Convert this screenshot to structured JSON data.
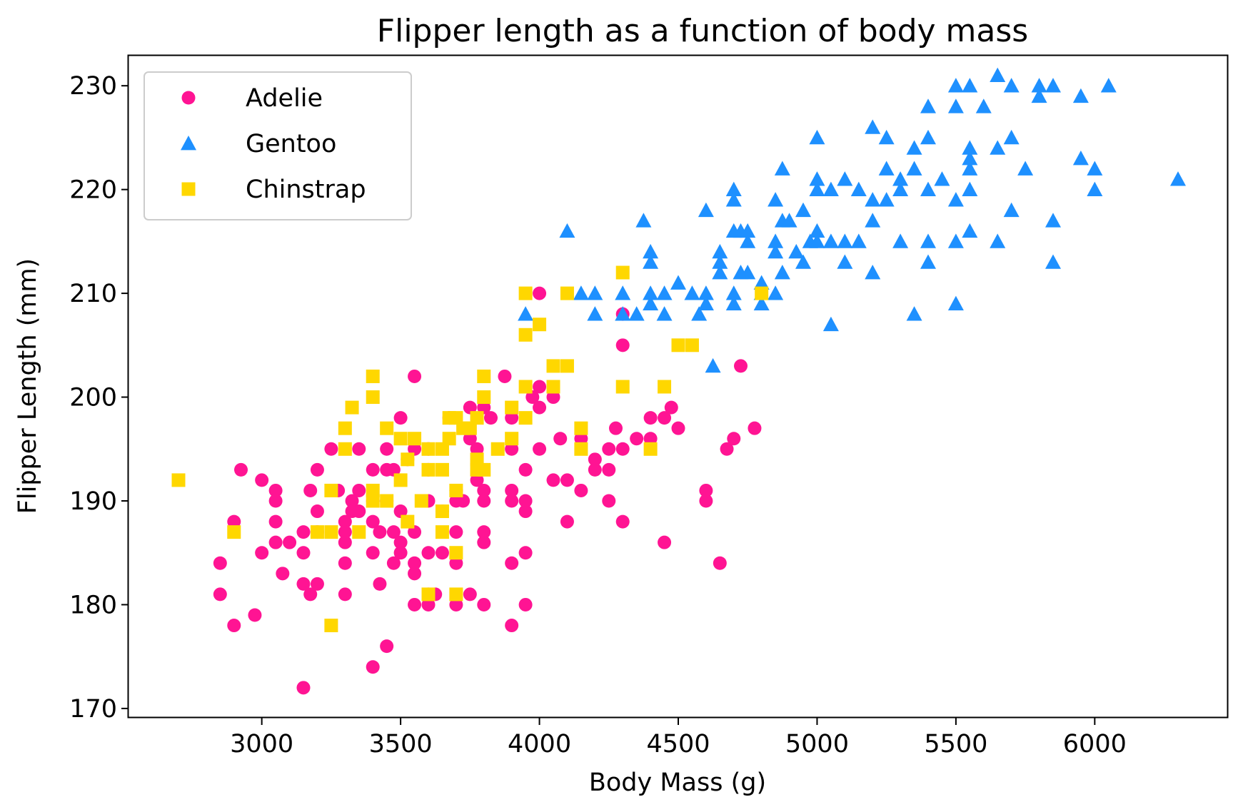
{
  "chart_data": {
    "type": "scatter",
    "title": "Flipper length as a function of body mass",
    "xlabel": "Body Mass (g)",
    "ylabel": "Flipper Length (mm)",
    "xlim": [
      2520,
      6480
    ],
    "ylim": [
      169.1,
      232.9
    ],
    "xticks": [
      3000,
      3500,
      4000,
      4500,
      5000,
      5500,
      6000
    ],
    "yticks": [
      170,
      180,
      190,
      200,
      210,
      220,
      230
    ],
    "grid": false,
    "legend_position": "upper left",
    "series": [
      {
        "name": "Adelie",
        "marker": "circle",
        "color": "#ff1493",
        "points": [
          [
            2850,
            184
          ],
          [
            2850,
            181
          ],
          [
            2900,
            188
          ],
          [
            2900,
            178
          ],
          [
            2925,
            193
          ],
          [
            2975,
            179
          ],
          [
            3000,
            185
          ],
          [
            3000,
            192
          ],
          [
            3050,
            191
          ],
          [
            3050,
            190
          ],
          [
            3050,
            188
          ],
          [
            3050,
            186
          ],
          [
            3075,
            183
          ],
          [
            3100,
            186
          ],
          [
            3150,
            187
          ],
          [
            3150,
            185
          ],
          [
            3150,
            182
          ],
          [
            3150,
            172
          ],
          [
            3175,
            181
          ],
          [
            3175,
            191
          ],
          [
            3200,
            193
          ],
          [
            3200,
            189
          ],
          [
            3200,
            187
          ],
          [
            3200,
            182
          ],
          [
            3250,
            195
          ],
          [
            3275,
            191
          ],
          [
            3300,
            188
          ],
          [
            3300,
            187
          ],
          [
            3300,
            186
          ],
          [
            3300,
            184
          ],
          [
            3300,
            181
          ],
          [
            3325,
            190
          ],
          [
            3325,
            189
          ],
          [
            3350,
            195
          ],
          [
            3350,
            191
          ],
          [
            3350,
            189
          ],
          [
            3400,
            193
          ],
          [
            3400,
            190
          ],
          [
            3400,
            188
          ],
          [
            3400,
            185
          ],
          [
            3400,
            174
          ],
          [
            3425,
            187
          ],
          [
            3425,
            182
          ],
          [
            3450,
            195
          ],
          [
            3450,
            193
          ],
          [
            3450,
            190
          ],
          [
            3450,
            176
          ],
          [
            3475,
            193
          ],
          [
            3475,
            187
          ],
          [
            3475,
            184
          ],
          [
            3500,
            198
          ],
          [
            3500,
            186
          ],
          [
            3500,
            185
          ],
          [
            3500,
            189
          ],
          [
            3525,
            194
          ],
          [
            3550,
            202
          ],
          [
            3550,
            195
          ],
          [
            3550,
            187
          ],
          [
            3550,
            184
          ],
          [
            3550,
            183
          ],
          [
            3550,
            180
          ],
          [
            3600,
            195
          ],
          [
            3600,
            193
          ],
          [
            3600,
            190
          ],
          [
            3600,
            185
          ],
          [
            3600,
            181
          ],
          [
            3600,
            180
          ],
          [
            3625,
            181
          ],
          [
            3650,
            189
          ],
          [
            3650,
            185
          ],
          [
            3675,
            198
          ],
          [
            3700,
            191
          ],
          [
            3700,
            190
          ],
          [
            3700,
            187
          ],
          [
            3700,
            184
          ],
          [
            3700,
            180
          ],
          [
            3725,
            190
          ],
          [
            3750,
            199
          ],
          [
            3750,
            196
          ],
          [
            3750,
            181
          ],
          [
            3775,
            195
          ],
          [
            3775,
            192
          ],
          [
            3800,
            199
          ],
          [
            3800,
            191
          ],
          [
            3800,
            190
          ],
          [
            3800,
            187
          ],
          [
            3800,
            186
          ],
          [
            3800,
            180
          ],
          [
            3825,
            198
          ],
          [
            3875,
            202
          ],
          [
            3900,
            198
          ],
          [
            3900,
            195
          ],
          [
            3900,
            190
          ],
          [
            3900,
            191
          ],
          [
            3900,
            184
          ],
          [
            3900,
            178
          ],
          [
            3950,
            193
          ],
          [
            3950,
            190
          ],
          [
            3950,
            189
          ],
          [
            3950,
            185
          ],
          [
            3950,
            180
          ],
          [
            3975,
            200
          ],
          [
            4000,
            210
          ],
          [
            4000,
            201
          ],
          [
            4000,
            199
          ],
          [
            4000,
            195
          ],
          [
            4050,
            200
          ],
          [
            4050,
            192
          ],
          [
            4075,
            196
          ],
          [
            4100,
            192
          ],
          [
            4100,
            188
          ],
          [
            4150,
            196
          ],
          [
            4150,
            191
          ],
          [
            4200,
            194
          ],
          [
            4200,
            193
          ],
          [
            4250,
            195
          ],
          [
            4250,
            193
          ],
          [
            4250,
            190
          ],
          [
            4275,
            197
          ],
          [
            4300,
            205
          ],
          [
            4300,
            208
          ],
          [
            4300,
            195
          ],
          [
            4300,
            188
          ],
          [
            4350,
            196
          ],
          [
            4400,
            198
          ],
          [
            4400,
            196
          ],
          [
            4450,
            198
          ],
          [
            4450,
            186
          ],
          [
            4475,
            199
          ],
          [
            4500,
            197
          ],
          [
            4600,
            191
          ],
          [
            4600,
            190
          ],
          [
            4650,
            184
          ],
          [
            4675,
            195
          ],
          [
            4700,
            196
          ],
          [
            4725,
            203
          ],
          [
            4775,
            197
          ]
        ]
      },
      {
        "name": "Gentoo",
        "marker": "triangle",
        "color": "#1e90ff",
        "points": [
          [
            3950,
            208
          ],
          [
            4100,
            216
          ],
          [
            4150,
            210
          ],
          [
            4200,
            210
          ],
          [
            4200,
            208
          ],
          [
            4300,
            210
          ],
          [
            4300,
            208
          ],
          [
            4350,
            208
          ],
          [
            4375,
            217
          ],
          [
            4400,
            214
          ],
          [
            4400,
            213
          ],
          [
            4400,
            210
          ],
          [
            4400,
            209
          ],
          [
            4450,
            210
          ],
          [
            4450,
            208
          ],
          [
            4500,
            211
          ],
          [
            4550,
            210
          ],
          [
            4575,
            208
          ],
          [
            4600,
            218
          ],
          [
            4600,
            210
          ],
          [
            4600,
            209
          ],
          [
            4625,
            203
          ],
          [
            4650,
            214
          ],
          [
            4650,
            213
          ],
          [
            4650,
            212
          ],
          [
            4700,
            220
          ],
          [
            4700,
            219
          ],
          [
            4700,
            216
          ],
          [
            4700,
            210
          ],
          [
            4700,
            209
          ],
          [
            4725,
            216
          ],
          [
            4725,
            212
          ],
          [
            4750,
            216
          ],
          [
            4750,
            215
          ],
          [
            4750,
            212
          ],
          [
            4800,
            211
          ],
          [
            4800,
            210
          ],
          [
            4800,
            209
          ],
          [
            4850,
            219
          ],
          [
            4850,
            215
          ],
          [
            4850,
            214
          ],
          [
            4850,
            210
          ],
          [
            4875,
            222
          ],
          [
            4875,
            217
          ],
          [
            4875,
            212
          ],
          [
            4900,
            217
          ],
          [
            4925,
            214
          ],
          [
            4950,
            218
          ],
          [
            4950,
            213
          ],
          [
            4975,
            215
          ],
          [
            5000,
            225
          ],
          [
            5000,
            221
          ],
          [
            5000,
            220
          ],
          [
            5000,
            216
          ],
          [
            5000,
            215
          ],
          [
            5050,
            220
          ],
          [
            5050,
            215
          ],
          [
            5050,
            207
          ],
          [
            5100,
            221
          ],
          [
            5100,
            215
          ],
          [
            5100,
            213
          ],
          [
            5150,
            220
          ],
          [
            5150,
            215
          ],
          [
            5200,
            226
          ],
          [
            5200,
            219
          ],
          [
            5200,
            217
          ],
          [
            5200,
            212
          ],
          [
            5250,
            225
          ],
          [
            5250,
            222
          ],
          [
            5250,
            219
          ],
          [
            5300,
            221
          ],
          [
            5300,
            220
          ],
          [
            5300,
            215
          ],
          [
            5350,
            224
          ],
          [
            5350,
            222
          ],
          [
            5350,
            208
          ],
          [
            5400,
            228
          ],
          [
            5400,
            225
          ],
          [
            5400,
            220
          ],
          [
            5400,
            215
          ],
          [
            5400,
            213
          ],
          [
            5450,
            221
          ],
          [
            5500,
            230
          ],
          [
            5500,
            228
          ],
          [
            5500,
            219
          ],
          [
            5500,
            215
          ],
          [
            5500,
            209
          ],
          [
            5550,
            230
          ],
          [
            5550,
            224
          ],
          [
            5550,
            223
          ],
          [
            5550,
            222
          ],
          [
            5550,
            220
          ],
          [
            5550,
            216
          ],
          [
            5600,
            228
          ],
          [
            5650,
            231
          ],
          [
            5650,
            224
          ],
          [
            5650,
            215
          ],
          [
            5700,
            230
          ],
          [
            5700,
            225
          ],
          [
            5700,
            218
          ],
          [
            5750,
            222
          ],
          [
            5800,
            230
          ],
          [
            5800,
            229
          ],
          [
            5850,
            230
          ],
          [
            5850,
            217
          ],
          [
            5850,
            213
          ],
          [
            5950,
            229
          ],
          [
            5950,
            223
          ],
          [
            6000,
            222
          ],
          [
            6000,
            220
          ],
          [
            6050,
            230
          ],
          [
            6300,
            221
          ]
        ]
      },
      {
        "name": "Chinstrap",
        "marker": "square",
        "color": "#ffd700",
        "points": [
          [
            2700,
            192
          ],
          [
            2900,
            187
          ],
          [
            3200,
            187
          ],
          [
            3250,
            191
          ],
          [
            3250,
            187
          ],
          [
            3250,
            178
          ],
          [
            3300,
            197
          ],
          [
            3300,
            195
          ],
          [
            3325,
            199
          ],
          [
            3350,
            187
          ],
          [
            3400,
            202
          ],
          [
            3400,
            200
          ],
          [
            3400,
            191
          ],
          [
            3400,
            190
          ],
          [
            3450,
            197
          ],
          [
            3450,
            190
          ],
          [
            3500,
            196
          ],
          [
            3500,
            192
          ],
          [
            3525,
            194
          ],
          [
            3525,
            188
          ],
          [
            3550,
            196
          ],
          [
            3575,
            190
          ],
          [
            3600,
            195
          ],
          [
            3600,
            193
          ],
          [
            3600,
            181
          ],
          [
            3650,
            195
          ],
          [
            3650,
            193
          ],
          [
            3650,
            189
          ],
          [
            3650,
            187
          ],
          [
            3675,
            196
          ],
          [
            3675,
            198
          ],
          [
            3700,
            198
          ],
          [
            3700,
            191
          ],
          [
            3700,
            185
          ],
          [
            3700,
            181
          ],
          [
            3725,
            197
          ],
          [
            3750,
            197
          ],
          [
            3775,
            198
          ],
          [
            3775,
            194
          ],
          [
            3775,
            193
          ],
          [
            3800,
            202
          ],
          [
            3800,
            200
          ],
          [
            3800,
            193
          ],
          [
            3850,
            195
          ],
          [
            3900,
            199
          ],
          [
            3900,
            196
          ],
          [
            3950,
            210
          ],
          [
            3950,
            206
          ],
          [
            3950,
            201
          ],
          [
            3950,
            198
          ],
          [
            4000,
            207
          ],
          [
            4050,
            203
          ],
          [
            4050,
            201
          ],
          [
            4100,
            210
          ],
          [
            4100,
            203
          ],
          [
            4150,
            197
          ],
          [
            4150,
            195
          ],
          [
            4300,
            212
          ],
          [
            4300,
            201
          ],
          [
            4400,
            195
          ],
          [
            4450,
            201
          ],
          [
            4500,
            205
          ],
          [
            4550,
            205
          ],
          [
            4800,
            210
          ]
        ]
      }
    ]
  }
}
